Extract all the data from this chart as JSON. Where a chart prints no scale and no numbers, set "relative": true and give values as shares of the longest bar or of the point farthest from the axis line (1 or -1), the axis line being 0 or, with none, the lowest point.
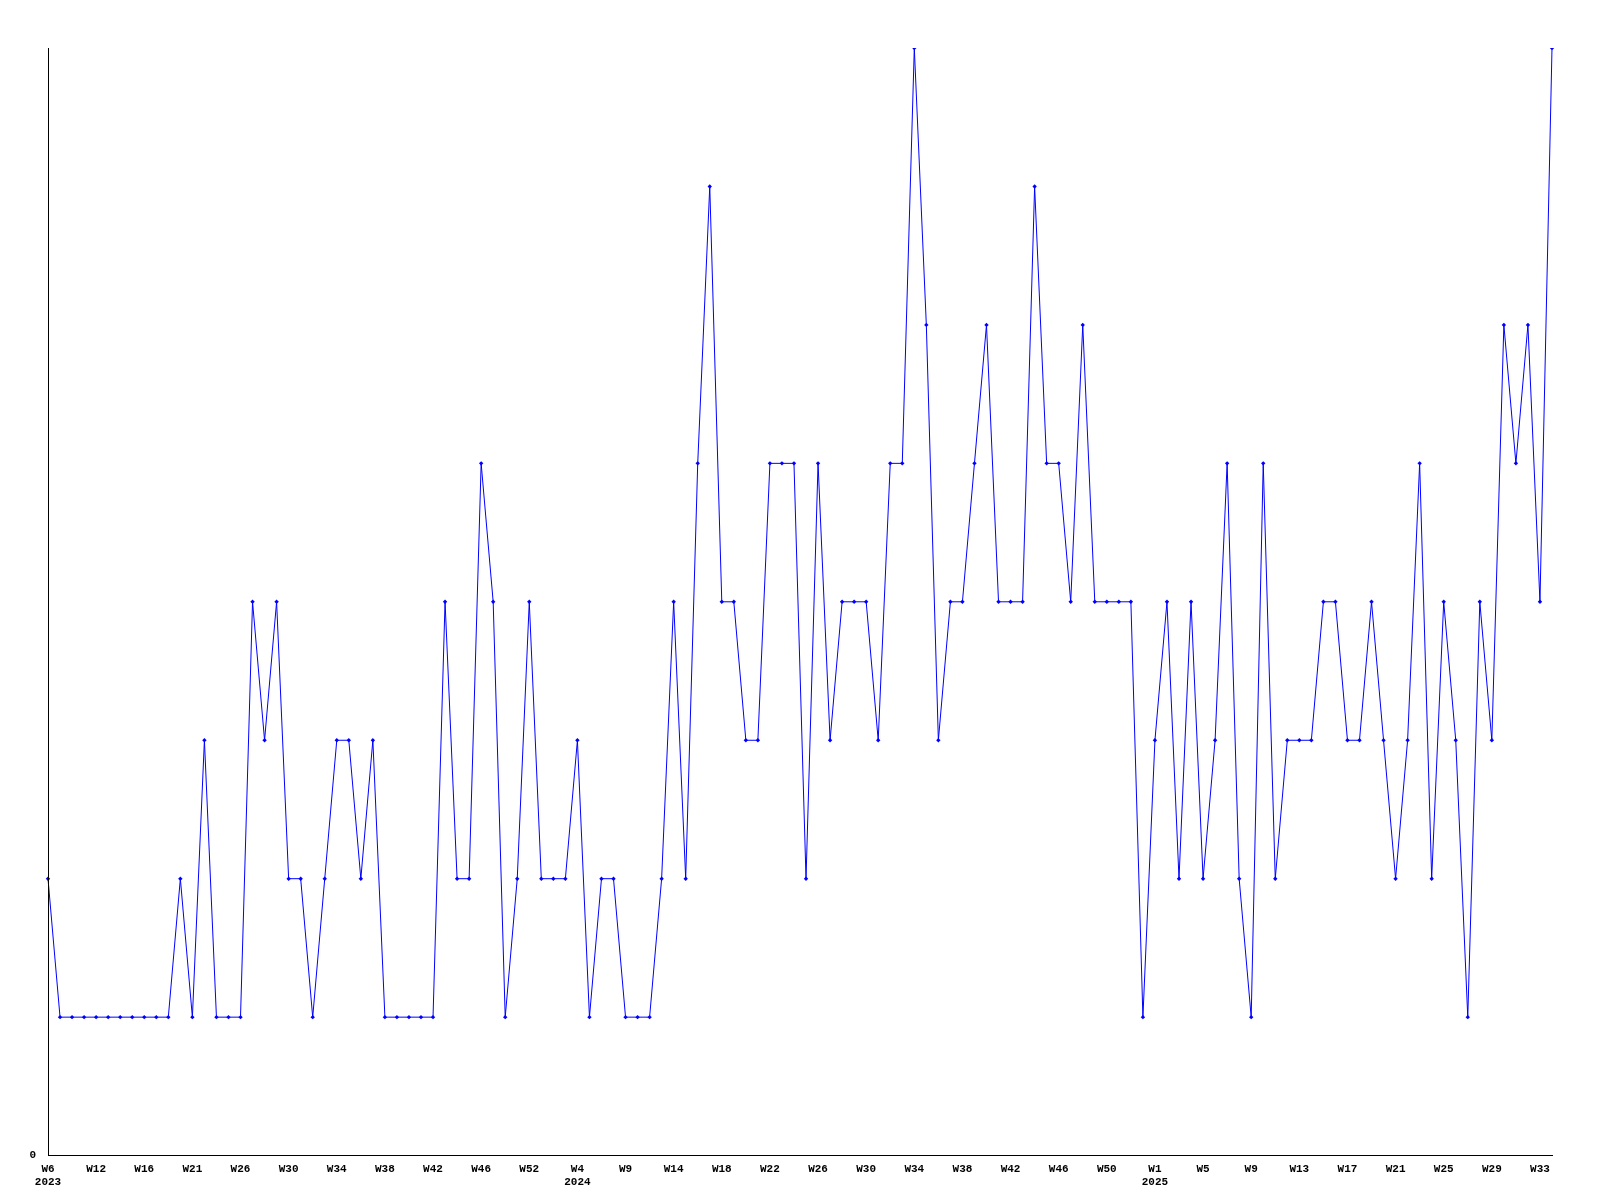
{
  "chart_data": {
    "type": "line",
    "relative": true,
    "color": "#0000ff",
    "marker": "diamond",
    "grid": false,
    "legend": false,
    "annotations": [
      "0"
    ],
    "categories": [
      "W6\n2023",
      null,
      null,
      null,
      "W12",
      null,
      null,
      null,
      "W16",
      null,
      null,
      null,
      "W21",
      null,
      null,
      null,
      "W26",
      null,
      null,
      null,
      "W30",
      null,
      null,
      null,
      "W34",
      null,
      null,
      null,
      "W38",
      null,
      null,
      null,
      "W42",
      null,
      null,
      null,
      "W46",
      null,
      null,
      null,
      "W52",
      null,
      null,
      null,
      "W4\n2024",
      null,
      null,
      null,
      "W9",
      null,
      null,
      null,
      "W14",
      null,
      null,
      null,
      "W18",
      null,
      null,
      null,
      "W22",
      null,
      null,
      null,
      "W26",
      null,
      null,
      null,
      "W30",
      null,
      null,
      null,
      "W34",
      null,
      null,
      null,
      "W38",
      null,
      null,
      null,
      "W42",
      null,
      null,
      null,
      "W46",
      null,
      null,
      null,
      "W50",
      null,
      null,
      null,
      "W1\n2025",
      null,
      null,
      null,
      "W5",
      null,
      null,
      null,
      "W9",
      null,
      null,
      null,
      "W13",
      null,
      null,
      null,
      "W17",
      null,
      null,
      null,
      "W21",
      null,
      null,
      null,
      "W25",
      null,
      null,
      null,
      "W29",
      null,
      null,
      null,
      "W33",
      null
    ],
    "values": [
      0.25,
      0.125,
      0.125,
      0.125,
      0.125,
      0.125,
      0.125,
      0.125,
      0.125,
      0.125,
      0.125,
      0.25,
      0.125,
      0.375,
      0.125,
      0.125,
      0.125,
      0.5,
      0.375,
      0.5,
      0.25,
      0.25,
      0.125,
      0.25,
      0.375,
      0.375,
      0.25,
      0.375,
      0.125,
      0.125,
      0.125,
      0.125,
      0.125,
      0.5,
      0.25,
      0.25,
      0.625,
      0.5,
      0.125,
      0.25,
      0.5,
      0.25,
      0.25,
      0.25,
      0.375,
      0.125,
      0.25,
      0.25,
      0.125,
      0.125,
      0.125,
      0.25,
      0.5,
      0.25,
      0.625,
      0.875,
      0.5,
      0.5,
      0.375,
      0.375,
      0.625,
      0.625,
      0.625,
      0.25,
      0.625,
      0.375,
      0.5,
      0.5,
      0.5,
      0.375,
      0.625,
      0.625,
      1,
      0.75,
      0.375,
      0.5,
      0.5,
      0.625,
      0.75,
      0.5,
      0.5,
      0.5,
      0.875,
      0.625,
      0.625,
      0.5,
      0.75,
      0.5,
      0.5,
      0.5,
      0.5,
      0.125,
      0.375,
      0.5,
      0.25,
      0.5,
      0.25,
      0.375,
      0.625,
      0.25,
      0.125,
      0.625,
      0.25,
      0.375,
      0.375,
      0.375,
      0.5,
      0.5,
      0.375,
      0.375,
      0.5,
      0.375,
      0.25,
      0.375,
      0.625,
      0.25,
      0.5,
      0.375,
      0.125,
      0.5,
      0.375,
      0.75,
      0.625,
      0.75,
      0.5,
      1
    ]
  }
}
